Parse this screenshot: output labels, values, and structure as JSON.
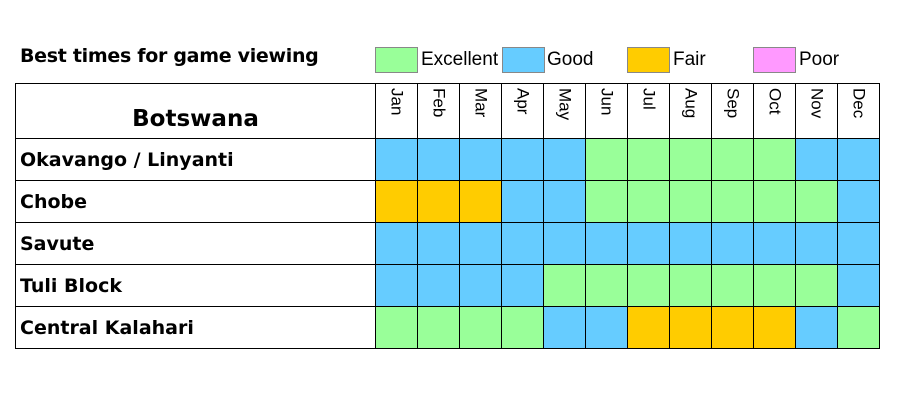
{
  "chart_data": {
    "type": "heatmap",
    "title": "Best times for game viewing",
    "row_header": "Botswana",
    "legend": [
      {
        "key": "Excellent",
        "label": "Excellent",
        "color": "#99FF99"
      },
      {
        "key": "Good",
        "label": "Good",
        "color": "#66CCFF"
      },
      {
        "key": "Fair",
        "label": "Fair",
        "color": "#FFCC00"
      },
      {
        "key": "Poor",
        "label": "Poor",
        "color": "#FF99FF"
      }
    ],
    "columns": [
      "Jan",
      "Feb",
      "Mar",
      "Apr",
      "May",
      "Jun",
      "Jul",
      "Aug",
      "Sep",
      "Oct",
      "Nov",
      "Dec"
    ],
    "rows": [
      {
        "name": "Okavango / Linyanti",
        "values": [
          "Good",
          "Good",
          "Good",
          "Good",
          "Good",
          "Excellent",
          "Excellent",
          "Excellent",
          "Excellent",
          "Excellent",
          "Good",
          "Good"
        ]
      },
      {
        "name": "Chobe",
        "values": [
          "Fair",
          "Fair",
          "Fair",
          "Good",
          "Good",
          "Excellent",
          "Excellent",
          "Excellent",
          "Excellent",
          "Excellent",
          "Excellent",
          "Good"
        ]
      },
      {
        "name": "Savute",
        "values": [
          "Good",
          "Good",
          "Good",
          "Good",
          "Good",
          "Good",
          "Good",
          "Good",
          "Good",
          "Good",
          "Good",
          "Good"
        ]
      },
      {
        "name": "Tuli Block",
        "values": [
          "Good",
          "Good",
          "Good",
          "Good",
          "Excellent",
          "Excellent",
          "Excellent",
          "Excellent",
          "Excellent",
          "Excellent",
          "Excellent",
          "Good"
        ]
      },
      {
        "name": "Central Kalahari",
        "values": [
          "Excellent",
          "Excellent",
          "Excellent",
          "Excellent",
          "Good",
          "Good",
          "Fair",
          "Fair",
          "Fair",
          "Fair",
          "Good",
          "Excellent"
        ]
      }
    ]
  }
}
